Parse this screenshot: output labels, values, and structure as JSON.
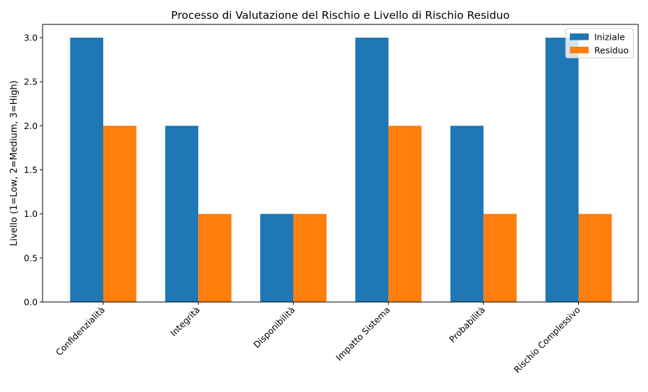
{
  "chart_data": {
    "type": "bar",
    "title": "Processo di Valutazione del Rischio e Livello di Rischio Residuo",
    "xlabel": "",
    "ylabel": "Livello (1=Low, 2=Medium, 3=High)",
    "categories": [
      "Confidenzialità",
      "Integrità",
      "Disponibilità",
      "Impatto Sistema",
      "Probabilità",
      "Rischio Complessivo"
    ],
    "series": [
      {
        "name": "Iniziale",
        "color": "#1f77b4",
        "values": [
          3,
          2,
          1,
          3,
          2,
          3
        ]
      },
      {
        "name": "Residuo",
        "color": "#ff7f0e",
        "values": [
          2,
          1,
          1,
          2,
          1,
          1
        ]
      }
    ],
    "ylim": [
      0,
      3.15
    ],
    "yticks": [
      "0.0",
      "0.5",
      "1.0",
      "1.5",
      "2.0",
      "2.5",
      "3.0"
    ],
    "grid": false,
    "legend": "top-right"
  }
}
